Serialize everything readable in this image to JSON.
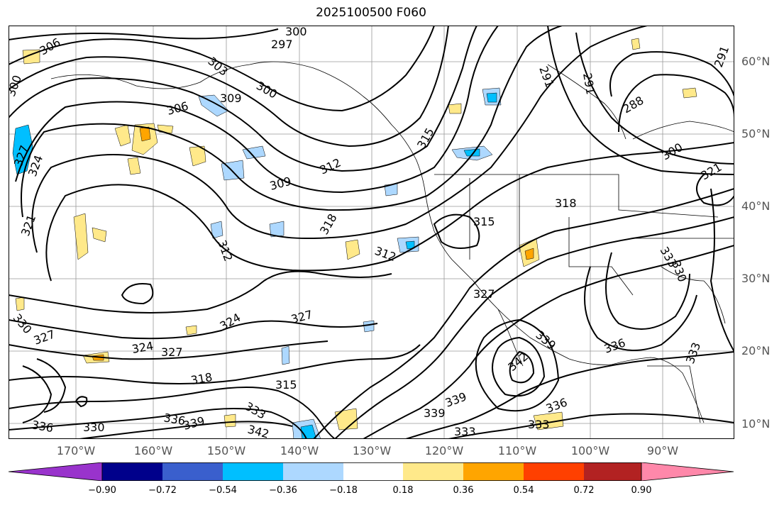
{
  "title": "2025100500 F060",
  "lat_labels": [
    "60°N",
    "50°N",
    "40°N",
    "30°N",
    "20°N",
    "10°N"
  ],
  "lon_labels": [
    "170°W",
    "160°W",
    "150°W",
    "140°W",
    "130°W",
    "120°W",
    "110°W",
    "100°W",
    "90°W"
  ],
  "colorbar": {
    "ticks": [
      "−0.90",
      "−0.72",
      "−0.54",
      "−0.36",
      "−0.18",
      "0.18",
      "0.36",
      "0.54",
      "0.72",
      "0.90"
    ],
    "colors": [
      "#9933cc",
      "#00008b",
      "#3a5fcd",
      "#00bfff",
      "#add8ff",
      "#ffffff",
      "#ffe98a",
      "#ffa500",
      "#ff4000",
      "#b22222",
      "#ff88aa"
    ]
  },
  "contour_labels": [
    {
      "text": "300"
    },
    {
      "text": "297"
    },
    {
      "text": "306"
    },
    {
      "text": "303"
    },
    {
      "text": "300"
    },
    {
      "text": "309"
    },
    {
      "text": "300"
    },
    {
      "text": "306"
    },
    {
      "text": "291"
    },
    {
      "text": "291"
    },
    {
      "text": "288"
    },
    {
      "text": "291"
    },
    {
      "text": "315"
    },
    {
      "text": "327"
    },
    {
      "text": "324"
    },
    {
      "text": "309"
    },
    {
      "text": "312"
    },
    {
      "text": "300"
    },
    {
      "text": "321"
    },
    {
      "text": "318"
    },
    {
      "text": "312"
    },
    {
      "text": "312"
    },
    {
      "text": "315"
    },
    {
      "text": "318"
    },
    {
      "text": "333"
    },
    {
      "text": "330"
    },
    {
      "text": "330"
    },
    {
      "text": "327"
    },
    {
      "text": "321"
    },
    {
      "text": "324"
    },
    {
      "text": "324"
    },
    {
      "text": "327"
    },
    {
      "text": "327"
    },
    {
      "text": "327"
    },
    {
      "text": "339"
    },
    {
      "text": "336"
    },
    {
      "text": "342"
    },
    {
      "text": "333"
    },
    {
      "text": "318"
    },
    {
      "text": "315"
    },
    {
      "text": "333"
    },
    {
      "text": "336"
    },
    {
      "text": "339"
    },
    {
      "text": "330"
    },
    {
      "text": "336"
    },
    {
      "text": "339"
    },
    {
      "text": "339"
    },
    {
      "text": "342"
    },
    {
      "text": "333"
    },
    {
      "text": "336"
    },
    {
      "text": "333"
    }
  ]
}
